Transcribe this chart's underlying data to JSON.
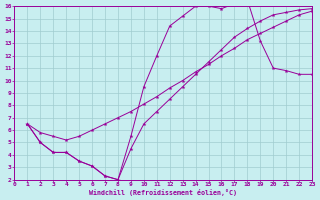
{
  "bg_color": "#c8eef0",
  "grid_color": "#a0ccd0",
  "line_color": "#990099",
  "xlabel": "Windchill (Refroidissement éolien,°C)",
  "xlim": [
    0,
    23
  ],
  "ylim": [
    2,
    16
  ],
  "xticks": [
    0,
    1,
    2,
    3,
    4,
    5,
    6,
    7,
    8,
    9,
    10,
    11,
    12,
    13,
    14,
    15,
    16,
    17,
    18,
    19,
    20,
    21,
    22,
    23
  ],
  "yticks": [
    2,
    3,
    4,
    5,
    6,
    7,
    8,
    9,
    10,
    11,
    12,
    13,
    14,
    15,
    16
  ],
  "line1_x": [
    1,
    2,
    3,
    4,
    5,
    6,
    7,
    8,
    9,
    10,
    11,
    12,
    13,
    14,
    15,
    16,
    17,
    18,
    19,
    20,
    21,
    22,
    23
  ],
  "line1_y": [
    6.5,
    5.0,
    4.2,
    4.2,
    3.5,
    3.1,
    2.3,
    2.0,
    5.5,
    9.5,
    12.0,
    14.4,
    15.2,
    16.0,
    16.0,
    15.8,
    16.2,
    16.5,
    13.2,
    11.0,
    10.8,
    10.5,
    10.5
  ],
  "line2_x": [
    1,
    2,
    3,
    4,
    5,
    6,
    7,
    8,
    9,
    10,
    11,
    12,
    13,
    14,
    15,
    16,
    17,
    18,
    19,
    20,
    21,
    22,
    23
  ],
  "line2_y": [
    6.5,
    5.8,
    5.5,
    5.2,
    5.5,
    6.0,
    6.5,
    7.0,
    7.5,
    8.1,
    8.7,
    9.4,
    10.0,
    10.7,
    11.3,
    12.0,
    12.6,
    13.3,
    13.8,
    14.3,
    14.8,
    15.3,
    15.6
  ],
  "line3_x": [
    1,
    2,
    3,
    4,
    5,
    6,
    7,
    8,
    9,
    10,
    11,
    12,
    13,
    14,
    15,
    16,
    17,
    18,
    19,
    20,
    21,
    22,
    23
  ],
  "line3_y": [
    6.5,
    5.0,
    4.2,
    4.2,
    3.5,
    3.1,
    2.3,
    2.0,
    4.5,
    6.5,
    7.5,
    8.5,
    9.5,
    10.5,
    11.5,
    12.5,
    13.5,
    14.2,
    14.8,
    15.3,
    15.5,
    15.7,
    15.8
  ]
}
